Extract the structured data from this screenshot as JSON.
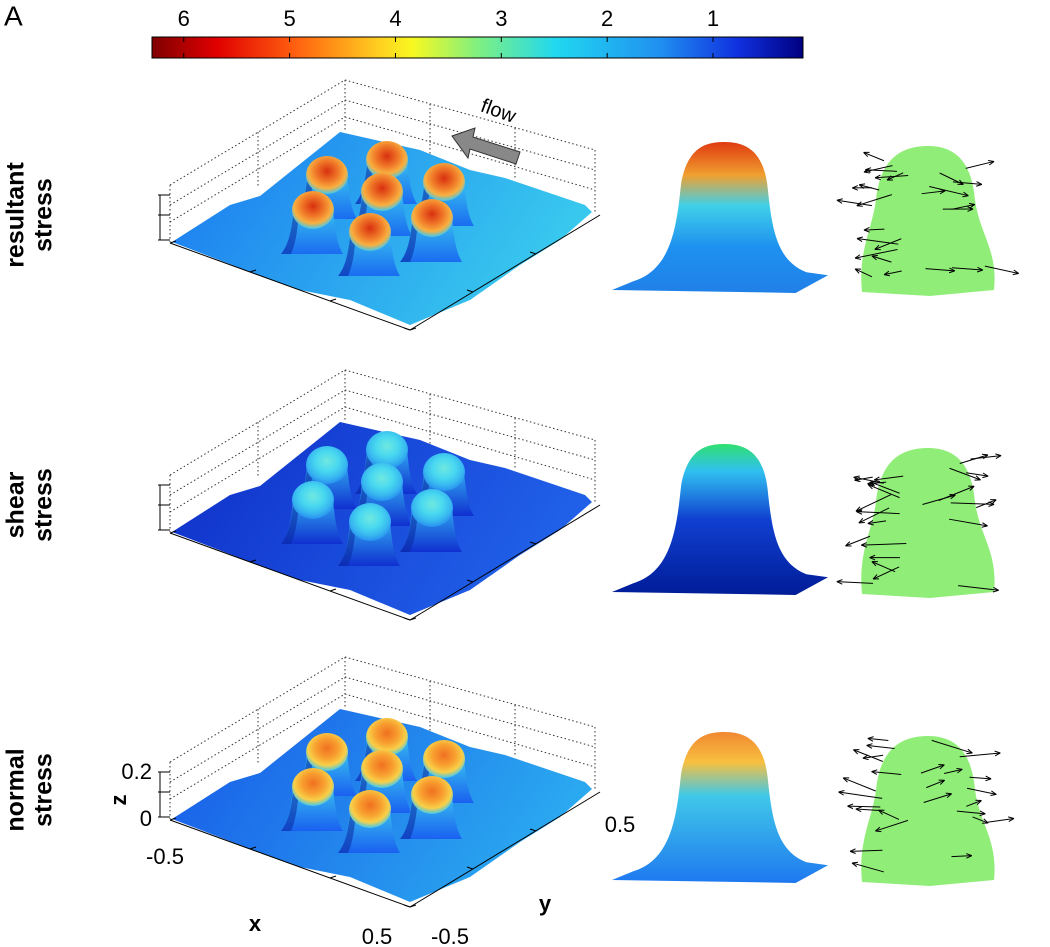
{
  "panel_label": "A",
  "colorbar": {
    "lim": [
      6.3,
      0.15
    ],
    "ticks": [
      6,
      5,
      4,
      3,
      2,
      1
    ]
  },
  "annotation": "flow",
  "rows": [
    {
      "label": [
        "resultant",
        "stress"
      ]
    },
    {
      "label": [
        "shear",
        "stress"
      ]
    },
    {
      "label": [
        "normal",
        "stress"
      ]
    }
  ],
  "axes": {
    "z_label": "z",
    "z_ticks": [
      0,
      0.2
    ],
    "x_label": "x",
    "x_ticks": [
      -0.5,
      0.5
    ],
    "y_label": "y",
    "y_ticks": [
      -0.5,
      0.5
    ]
  }
}
